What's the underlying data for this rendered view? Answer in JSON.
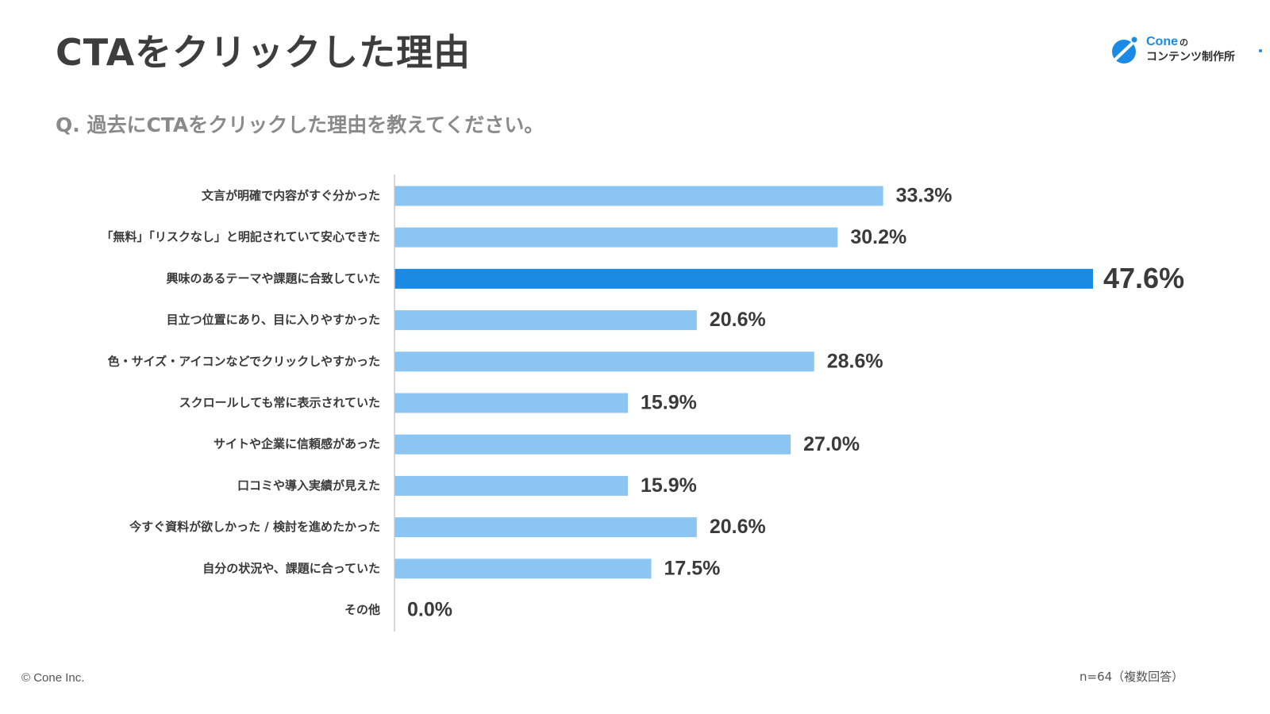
{
  "title": "CTAをクリックした理由",
  "question": "Q. 過去にCTAをクリックした理由を教えてください。",
  "logo": {
    "brand": "Cone",
    "particle": "の",
    "subtitle": "コンテンツ制作所"
  },
  "footer": {
    "copyright": "© Cone Inc.",
    "sample": "n=64（複数回答）"
  },
  "colors": {
    "bar": "#8cc4f2",
    "highlight_bar": "#1b8ae4",
    "axis": "#c8c8c8"
  },
  "chart_data": {
    "type": "bar",
    "orientation": "horizontal",
    "categories": [
      "文言が明確で内容がすぐ分かった",
      "「無料」「リスクなし」と明記されていて安心できた",
      "興味のあるテーマや課題に合致していた",
      "目立つ位置にあり、目に入りやすかった",
      "色・サイズ・アイコンなどでクリックしやすかった",
      "スクロールしても常に表示されていた",
      "サイトや企業に信頼感があった",
      "口コミや導入実績が見えた",
      "今すぐ資料が欲しかった / 検討を進めたかった",
      "自分の状況や、課題に合っていた",
      "その他"
    ],
    "values": [
      33.3,
      30.2,
      47.6,
      20.6,
      28.6,
      15.9,
      27.0,
      15.9,
      20.6,
      17.5,
      0.0
    ],
    "value_labels": [
      "33.3%",
      "30.2%",
      "47.6%",
      "20.6%",
      "28.6%",
      "15.9%",
      "27.0%",
      "15.9%",
      "20.6%",
      "17.5%",
      "0.0%"
    ],
    "highlight_index": 2,
    "unit": "%",
    "xlim": [
      0,
      47.6
    ],
    "grid": false
  }
}
